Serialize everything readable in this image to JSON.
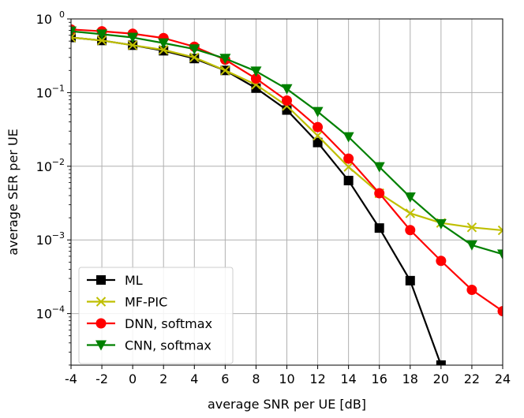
{
  "chart_data": {
    "type": "line",
    "xlabel": "average SNR per UE [dB]",
    "ylabel": "average SER per UE",
    "xscale": "linear",
    "yscale": "log",
    "xlim": [
      -4,
      24
    ],
    "ylim_log10": [
      -4.7,
      0
    ],
    "grid": true,
    "legend_position": "lower-left",
    "x_ticks": [
      -4,
      -2,
      0,
      2,
      4,
      6,
      8,
      10,
      12,
      14,
      16,
      18,
      20,
      22,
      24
    ],
    "x_tick_labels": [
      "-4",
      "-2",
      "0",
      "2",
      "4",
      "6",
      "8",
      "10",
      "12",
      "14",
      "16",
      "18",
      "20",
      "22",
      "24"
    ],
    "y_ticks": [
      {
        "exp": 0,
        "base": "10",
        "power": "0"
      },
      {
        "exp": -1,
        "base": "10",
        "power": "−1"
      },
      {
        "exp": -2,
        "base": "10",
        "power": "−2"
      },
      {
        "exp": -3,
        "base": "10",
        "power": "−3"
      },
      {
        "exp": -4,
        "base": "10",
        "power": "−4"
      }
    ],
    "series": [
      {
        "name": "ML",
        "color": "#000000",
        "marker": "square",
        "x": [
          -4,
          -2,
          0,
          2,
          4,
          6,
          8,
          10,
          12,
          14,
          16,
          18,
          20
        ],
        "y": [
          0.56,
          0.51,
          0.44,
          0.37,
          0.29,
          0.2,
          0.115,
          0.058,
          0.021,
          0.0064,
          0.00145,
          0.00028,
          2e-05
        ]
      },
      {
        "name": "MF-PIC",
        "color": "#bfbf00",
        "marker": "x",
        "x": [
          -4,
          -2,
          0,
          2,
          4,
          6,
          8,
          10,
          12,
          14,
          16,
          18,
          20,
          22,
          24
        ],
        "y": [
          0.56,
          0.51,
          0.44,
          0.38,
          0.3,
          0.2,
          0.128,
          0.066,
          0.026,
          0.0098,
          0.0043,
          0.0023,
          0.0017,
          0.00148,
          0.00135
        ]
      },
      {
        "name": "DNN, softmax",
        "color": "#ff0000",
        "marker": "circle",
        "x": [
          -4,
          -2,
          0,
          2,
          4,
          6,
          8,
          10,
          12,
          14,
          16,
          18,
          20,
          22,
          24
        ],
        "y": [
          0.72,
          0.68,
          0.63,
          0.55,
          0.42,
          0.28,
          0.155,
          0.078,
          0.034,
          0.0127,
          0.0043,
          0.00136,
          0.00052,
          0.00021,
          0.000108
        ]
      },
      {
        "name": "CNN, softmax",
        "color": "#008000",
        "marker": "triangle-down",
        "x": [
          -4,
          -2,
          0,
          2,
          4,
          6,
          8,
          10,
          12,
          14,
          16,
          18,
          20,
          22,
          24
        ],
        "y": [
          0.68,
          0.62,
          0.56,
          0.47,
          0.39,
          0.29,
          0.195,
          0.112,
          0.055,
          0.025,
          0.0098,
          0.0038,
          0.00165,
          0.00085,
          0.00064
        ]
      }
    ]
  }
}
